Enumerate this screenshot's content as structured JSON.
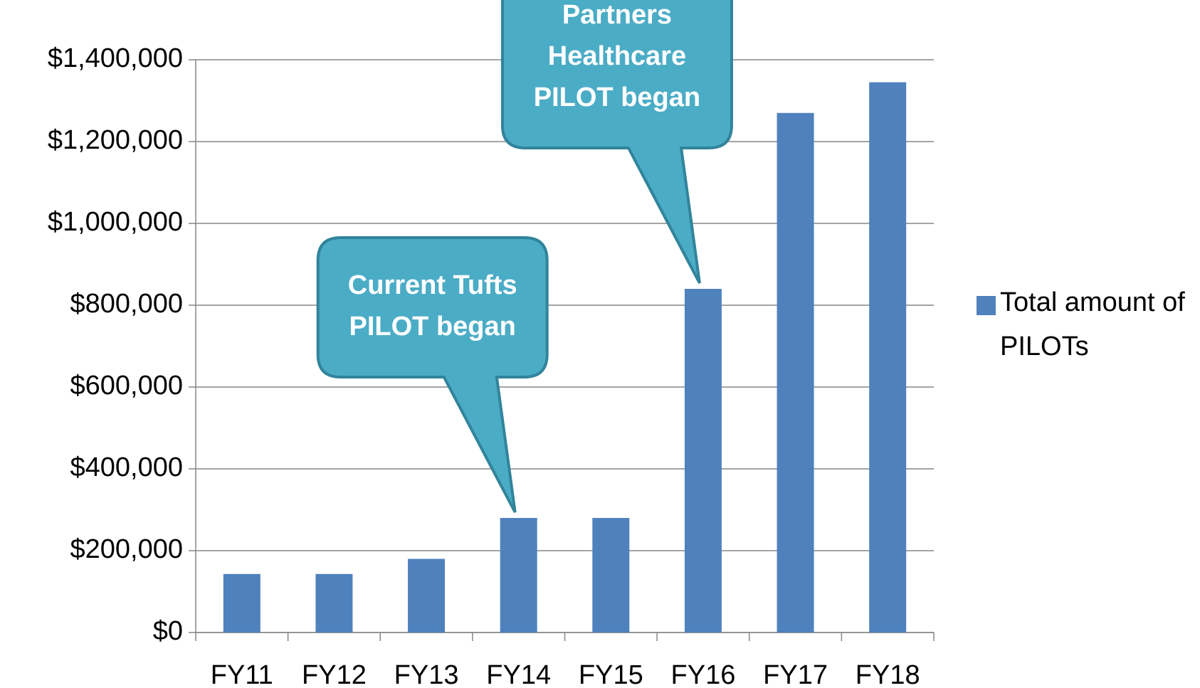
{
  "chart_data": {
    "type": "bar",
    "categories": [
      "FY11",
      "FY12",
      "FY13",
      "FY14",
      "FY15",
      "FY16",
      "FY17",
      "FY18"
    ],
    "series": [
      {
        "name": "Total amount of PILOTs",
        "color": "#4f81bd",
        "values": [
          143000,
          143000,
          180000,
          280000,
          280000,
          840000,
          1270000,
          1345000
        ]
      }
    ],
    "ylim": [
      0,
      1400000
    ],
    "yticks": [
      {
        "value": 0,
        "label": "$0"
      },
      {
        "value": 200000,
        "label": "$200,000"
      },
      {
        "value": 400000,
        "label": "$400,000"
      },
      {
        "value": 600000,
        "label": "$600,000"
      },
      {
        "value": 800000,
        "label": "$800,000"
      },
      {
        "value": 1000000,
        "label": "$1,000,000"
      },
      {
        "value": 1200000,
        "label": "$1,200,000"
      },
      {
        "value": 1400000,
        "label": "$1,400,000"
      }
    ],
    "grid": true,
    "legend": "right",
    "annotations": [
      {
        "lines": [
          "Current Tufts",
          "PILOT began"
        ],
        "category": "FY14",
        "color": "#4bacc6"
      },
      {
        "lines": [
          "Partners",
          "Healthcare",
          "PILOT began"
        ],
        "category": "FY16",
        "color": "#4bacc6"
      }
    ]
  }
}
